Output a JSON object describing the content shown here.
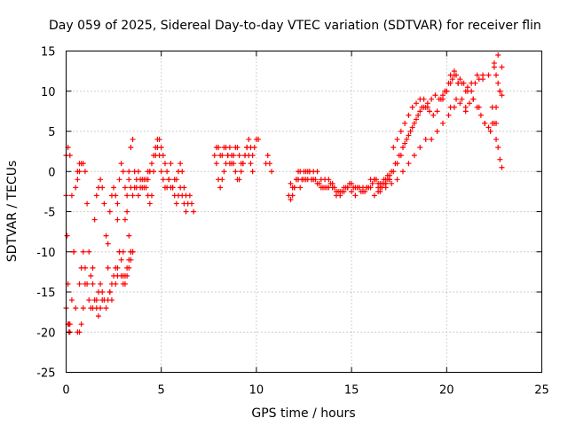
{
  "chart_data": {
    "type": "scatter",
    "title": "Day 059 of 2025, Sidereal Day-to-day VTEC variation (SDTVAR) for receiver flin",
    "xlabel": "GPS time / hours",
    "ylabel": "SDTVAR / TECUs",
    "xlim": [
      0,
      25
    ],
    "ylim": [
      -25,
      15
    ],
    "xticks": [
      0,
      5,
      10,
      15,
      20,
      25
    ],
    "yticks": [
      -25,
      -20,
      -15,
      -10,
      -5,
      0,
      5,
      10,
      15
    ],
    "grid": true,
    "legend": "none",
    "marker": "+",
    "colors": {
      "series": "#ff0000",
      "grid": "#a0a0a0",
      "axes": "#000000"
    },
    "series": [
      {
        "name": "SDTVAR",
        "segments": [
          {
            "x": [
              0.0,
              0.1,
              0.2,
              0.3,
              0.4,
              0.5,
              0.6,
              0.7,
              0.8,
              0.9,
              1.0
            ],
            "y": [
              2,
              3,
              2,
              -3,
              -10,
              -17,
              -20,
              -20,
              -19,
              -17,
              -14
            ]
          },
          {
            "x": [
              0.0,
              0.1,
              0.15,
              0.2,
              0.3,
              0.4,
              0.5,
              0.6,
              0.7
            ],
            "y": [
              -17,
              -19,
              -20,
              -19,
              -16,
              -10,
              -2,
              0,
              1
            ]
          },
          {
            "x": [
              0.0,
              0.05,
              0.1,
              0.15,
              0.2
            ],
            "y": [
              -3,
              -8,
              -14,
              -19,
              -20
            ]
          },
          {
            "x": [
              0.6,
              0.7,
              0.8,
              0.9,
              1.0,
              1.1,
              1.2,
              1.3,
              1.4
            ],
            "y": [
              -1,
              0,
              1,
              1,
              0,
              -4,
              -10,
              -13,
              -14
            ]
          },
          {
            "x": [
              0.7,
              0.8,
              0.9,
              1.0,
              1.1,
              1.2,
              1.3,
              1.4,
              1.5,
              1.6,
              1.7,
              1.8,
              1.9
            ],
            "y": [
              -14,
              -12,
              -10,
              -12,
              -14,
              -16,
              -17,
              -17,
              -16,
              -17,
              -18,
              -17,
              -16
            ]
          },
          {
            "x": [
              1.4,
              1.5,
              1.6,
              1.7,
              1.8,
              1.9,
              2.0,
              2.1,
              2.2,
              2.3,
              2.4
            ],
            "y": [
              -12,
              -6,
              -3,
              -2,
              -1,
              -2,
              -4,
              -8,
              -12,
              -15,
              -16
            ]
          },
          {
            "x": [
              1.6,
              1.7,
              1.8,
              1.9,
              2.0,
              2.1,
              2.2,
              2.3,
              2.4,
              2.5,
              2.6,
              2.7
            ],
            "y": [
              -16,
              -15,
              -14,
              -15,
              -16,
              -17,
              -16,
              -15,
              -14,
              -13,
              -12,
              -13
            ]
          },
          {
            "x": [
              2.2,
              2.3,
              2.4,
              2.5,
              2.6,
              2.7,
              2.8,
              2.9,
              3.0,
              3.1,
              3.2,
              3.3,
              3.4
            ],
            "y": [
              -9,
              -5,
              -3,
              -2,
              -3,
              -6,
              -10,
              -13,
              -14,
              -13,
              -12,
              -11,
              -10
            ]
          },
          {
            "x": [
              2.6,
              2.7,
              2.8,
              2.9,
              3.0,
              3.1,
              3.2,
              3.3,
              3.4,
              3.5
            ],
            "y": [
              -14,
              -12,
              -10,
              -11,
              -13,
              -14,
              -13,
              -12,
              -11,
              -10
            ]
          },
          {
            "x": [
              2.7,
              2.8,
              2.9,
              3.0,
              3.1,
              3.2,
              3.3,
              3.4,
              3.5
            ],
            "y": [
              -4,
              -1,
              1,
              0,
              -2,
              -5,
              -8,
              -10,
              -10
            ]
          },
          {
            "x": [
              3.0,
              3.1,
              3.2,
              3.3,
              3.4,
              3.5,
              3.6,
              3.7,
              3.8,
              3.9,
              4.0,
              4.1,
              4.2,
              4.3,
              4.4,
              4.5
            ],
            "y": [
              -10,
              -6,
              -3,
              0,
              3,
              4,
              0,
              -2,
              -3,
              -2,
              -1,
              -1,
              -2,
              -3,
              -4,
              -3
            ]
          },
          {
            "x": [
              3.3,
              3.4,
              3.5,
              3.6,
              3.7,
              3.8,
              3.9,
              4.0,
              4.1,
              4.2,
              4.3,
              4.4
            ],
            "y": [
              -1,
              -2,
              -3,
              -2,
              -1,
              0,
              -1,
              -2,
              -2,
              -1,
              0,
              0
            ]
          },
          {
            "x": [
              4.3,
              4.4,
              4.5,
              4.6,
              4.7,
              4.8,
              4.9,
              5.0,
              5.1,
              5.2,
              5.3,
              5.4,
              5.5,
              5.6,
              5.7
            ],
            "y": [
              -1,
              0,
              1,
              2,
              3,
              4,
              4,
              3,
              2,
              1,
              0,
              -1,
              -2,
              -2,
              -1
            ]
          },
          {
            "x": [
              4.6,
              4.7,
              4.8,
              4.9,
              5.0,
              5.1,
              5.2,
              5.3,
              5.4,
              5.5
            ],
            "y": [
              0,
              2,
              3,
              2,
              0,
              -1,
              -2,
              -2,
              -1,
              1
            ]
          },
          {
            "x": [
              5.6,
              5.7,
              5.8,
              5.9,
              6.0,
              6.1,
              6.2,
              6.3,
              6.4,
              6.5,
              6.6,
              6.7
            ],
            "y": [
              -2,
              -3,
              -4,
              -3,
              -2,
              -3,
              -4,
              -5,
              -4,
              -3,
              -4,
              -5
            ]
          },
          {
            "x": [
              5.8,
              5.9,
              6.0,
              6.1,
              6.2,
              6.3
            ],
            "y": [
              -1,
              0,
              1,
              0,
              -2,
              -3
            ]
          },
          {
            "x": [
              7.8,
              7.9,
              8.0,
              8.1,
              8.2,
              8.3,
              8.4,
              8.5,
              8.6,
              8.7,
              8.8,
              8.9,
              9.0,
              9.1,
              9.2,
              9.3,
              9.4,
              9.5,
              9.6,
              9.7,
              9.8,
              9.9,
              10.0,
              10.1
            ],
            "y": [
              2,
              1,
              -1,
              -2,
              -1,
              0,
              1,
              2,
              3,
              2,
              1,
              0,
              -1,
              -1,
              0,
              1,
              2,
              3,
              4,
              3,
              2,
              3,
              4,
              4
            ]
          },
          {
            "x": [
              7.9,
              8.0,
              8.1,
              8.2,
              8.3,
              8.4,
              8.5,
              8.6,
              8.7,
              8.8,
              8.9,
              9.0,
              9.1,
              9.2,
              9.3,
              9.4,
              9.5,
              9.6,
              9.7,
              9.8
            ],
            "y": [
              3,
              3,
              2,
              2,
              3,
              3,
              2,
              1,
              1,
              2,
              3,
              3,
              2,
              1,
              1,
              2,
              3,
              2,
              1,
              0
            ]
          },
          {
            "x": [
              10.5,
              10.6,
              10.7,
              10.8
            ],
            "y": [
              1,
              2,
              1,
              0
            ]
          },
          {
            "x": [
              11.7,
              11.8,
              11.9,
              12.0,
              12.1,
              12.2,
              12.3,
              12.4,
              12.5,
              12.6,
              12.7,
              12.8,
              12.9,
              13.0,
              13.1,
              13.2,
              13.3,
              13.4,
              13.5,
              13.6,
              13.7,
              13.8,
              13.9,
              14.0,
              14.1,
              14.2,
              14.3,
              14.4,
              14.5,
              14.6,
              14.7,
              14.8,
              14.9,
              15.0,
              15.1,
              15.2,
              15.3,
              15.4,
              15.5,
              15.6,
              15.7,
              15.8,
              15.9,
              16.0,
              16.1,
              16.2,
              16.3,
              16.4,
              16.5,
              16.6,
              16.7,
              16.8,
              16.9,
              17.0
            ],
            "y": [
              -3,
              -3.5,
              -3,
              -2,
              -1,
              0,
              0,
              -1,
              -1,
              0,
              0,
              0,
              -1,
              -1,
              -1,
              -1.5,
              -1.5,
              -2,
              -2,
              -2,
              -2,
              -2,
              -1.5,
              -1.5,
              -2,
              -2.5,
              -2.5,
              -2.5,
              -2.5,
              -2.5,
              -2,
              -2,
              -1.5,
              -1.5,
              -2,
              -2,
              -2,
              -2,
              -2.5,
              -2.5,
              -2.5,
              -2,
              -2,
              -2,
              -1.5,
              -1,
              -1,
              -1.5,
              -1.5,
              -1.5,
              -1,
              -1,
              -0.5,
              -0.5
            ]
          },
          {
            "x": [
              11.8,
              11.9,
              12.0,
              12.1,
              12.2,
              12.3,
              12.4,
              12.5,
              12.6,
              12.7,
              12.8,
              12.9,
              13.0,
              13.2,
              13.4,
              13.6,
              13.8,
              14.0,
              14.2,
              14.4,
              14.6,
              14.8,
              15.0,
              15.2,
              15.4,
              15.6,
              15.8,
              16.0,
              16.2,
              16.4,
              16.6,
              16.8,
              17.0
            ],
            "y": [
              -1.5,
              -2,
              -2,
              -1,
              -1,
              -2,
              -1,
              0,
              -1,
              -1,
              0,
              -1,
              0,
              0,
              -1,
              -1,
              -1,
              -2,
              -3,
              -3,
              -2,
              -2,
              -2.5,
              -3,
              -2,
              -2,
              -2,
              -1,
              -1,
              -2,
              -2,
              -1.5,
              -1
            ]
          },
          {
            "x": [
              16.5,
              16.7,
              16.9,
              17.1,
              17.3,
              17.5,
              17.7,
              17.9,
              18.1,
              18.3,
              18.5,
              18.7,
              18.9,
              19.1,
              19.3,
              19.5,
              19.7,
              19.9,
              20.1,
              20.3,
              20.5,
              20.7,
              20.9,
              21.1,
              21.3,
              21.5,
              21.7,
              21.9
            ],
            "y": [
              -2,
              -1.5,
              -1,
              0,
              1,
              2,
              3,
              4,
              5,
              6,
              7,
              8,
              8,
              7.5,
              7,
              7.5,
              9,
              10,
              11,
              11.5,
              12,
              11.5,
              11,
              10.5,
              10,
              11,
              11.5,
              12
            ]
          },
          {
            "x": [
              16.2,
              16.4,
              16.6,
              16.8,
              17.0,
              17.2,
              17.4,
              17.6,
              17.8,
              18.0,
              18.2,
              18.4,
              18.6,
              18.8,
              19.0,
              19.2,
              19.4,
              19.6,
              19.8,
              20.0,
              20.2,
              20.4,
              20.6
            ],
            "y": [
              -3,
              -2.5,
              -2,
              -1.5,
              -1,
              0,
              1,
              2,
              3.5,
              4.5,
              5.5,
              6.5,
              7.5,
              8,
              8.5,
              9,
              9.5,
              9,
              9.5,
              10,
              11,
              12,
              11
            ]
          },
          {
            "x": [
              16.5,
              16.8,
              17.1,
              17.4,
              17.7,
              18.0,
              18.3,
              18.6,
              18.9,
              19.2,
              19.5,
              19.8,
              20.1,
              20.4,
              20.7,
              21.0
            ],
            "y": [
              -2.5,
              -2,
              -1.5,
              -1,
              0,
              1,
              2,
              3,
              4,
              4,
              5,
              6,
              7,
              8,
              8.5,
              7.5
            ]
          },
          {
            "x": [
              17.2,
              17.4,
              17.6,
              17.8,
              18.0,
              18.2,
              18.4,
              18.6,
              18.8,
              19.0
            ],
            "y": [
              3,
              4,
              5,
              6,
              7,
              8,
              8.5,
              9,
              9,
              8
            ]
          },
          {
            "x": [
              19.8,
              20.0,
              20.2,
              20.4,
              20.6,
              20.8,
              21.0,
              21.2,
              21.4,
              21.6,
              21.8,
              22.0,
              22.2,
              22.4,
              22.6,
              22.8
            ],
            "y": [
              9,
              10,
              12,
              12.5,
              11,
              9,
              8,
              8.5,
              9,
              8,
              7,
              6,
              5.5,
              6,
              8,
              10
            ]
          },
          {
            "x": [
              20.2,
              20.5,
              20.8,
              21.1,
              21.4,
              21.7,
              22.0,
              22.3,
              22.6
            ],
            "y": [
              8,
              9,
              11,
              10,
              9,
              8,
              6,
              5,
              6
            ]
          },
          {
            "x": [
              21.0,
              21.3,
              21.6,
              21.9,
              22.2,
              22.5,
              22.7,
              22.9
            ],
            "y": [
              10,
              11,
              12,
              11.5,
              12,
              13.5,
              14.5,
              13
            ]
          },
          {
            "x": [
              22.4,
              22.5,
              22.6,
              22.7,
              22.8,
              22.9
            ],
            "y": [
              8,
              6,
              4,
              3,
              1.5,
              0.5
            ]
          },
          {
            "x": [
              22.5,
              22.6,
              22.7,
              22.8,
              22.9
            ],
            "y": [
              13,
              12,
              11,
              10,
              9.5
            ]
          }
        ]
      }
    ]
  }
}
